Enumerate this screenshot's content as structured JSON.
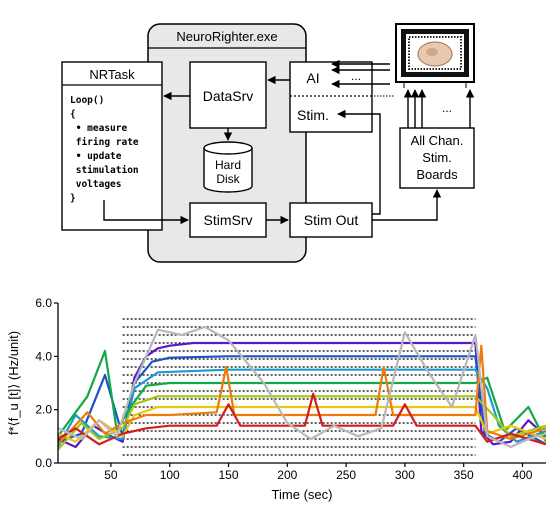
{
  "diagram": {
    "app_label": "NeuroRighter.exe",
    "nrtask": {
      "title": "NRTask",
      "code_lines": [
        "Loop()",
        "{",
        " • measure",
        " firing rate",
        " • update",
        " stimulation",
        " voltages",
        "}"
      ]
    },
    "datasrv": "DataSrv",
    "hard_disk": [
      "Hard",
      "Disk"
    ],
    "stimsrv": "StimSrv",
    "ai": "AI",
    "ellipsis": "...",
    "stim": "Stim.",
    "stim_out": "Stim Out",
    "boards": [
      "All Chan.",
      "Stim.",
      "Boards"
    ],
    "board_ellipsis": "..."
  },
  "chart_data": {
    "type": "line",
    "xlabel": "Time (sec)",
    "ylabel": "f*⟨f_u [t]⟩ (Hz/unit)",
    "xlim": [
      5,
      420
    ],
    "ylim": [
      0,
      6
    ],
    "xticks": [
      "50",
      "100",
      "150",
      "200",
      "250",
      "300",
      "350",
      "400"
    ],
    "yticks": [
      "0.0",
      "2.0",
      "4.0",
      "6.0"
    ],
    "target_levels": [
      0.3,
      0.6,
      0.9,
      1.2,
      1.5,
      1.8,
      2.1,
      2.4,
      2.7,
      3.0,
      3.3,
      3.6,
      3.9,
      4.2,
      4.5,
      4.8,
      5.1,
      5.4
    ],
    "target_window": [
      60,
      360
    ],
    "series": [
      {
        "color": "#5a18c8",
        "values": [
          [
            5,
            0.9
          ],
          [
            20,
            0.6
          ],
          [
            35,
            1.4
          ],
          [
            50,
            1.0
          ],
          [
            60,
            0.8
          ],
          [
            70,
            3.2
          ],
          [
            80,
            4.0
          ],
          [
            90,
            4.3
          ],
          [
            100,
            4.4
          ],
          [
            120,
            4.5
          ],
          [
            150,
            4.5
          ],
          [
            200,
            4.5
          ],
          [
            250,
            4.5
          ],
          [
            300,
            4.5
          ],
          [
            360,
            4.5
          ],
          [
            365,
            1.2
          ],
          [
            375,
            0.7
          ],
          [
            390,
            0.8
          ],
          [
            405,
            1.6
          ],
          [
            420,
            1.0
          ]
        ]
      },
      {
        "color": "#1e50c8",
        "values": [
          [
            5,
            0.8
          ],
          [
            25,
            1.1
          ],
          [
            45,
            3.3
          ],
          [
            60,
            1.0
          ],
          [
            70,
            3.0
          ],
          [
            85,
            3.8
          ],
          [
            100,
            3.95
          ],
          [
            150,
            4.0
          ],
          [
            200,
            4.0
          ],
          [
            250,
            4.0
          ],
          [
            300,
            4.0
          ],
          [
            360,
            4.0
          ],
          [
            368,
            1.1
          ],
          [
            380,
            0.8
          ],
          [
            395,
            1.3
          ],
          [
            420,
            0.7
          ]
        ]
      },
      {
        "color": "#1a9bd0",
        "values": [
          [
            5,
            0.6
          ],
          [
            20,
            1.8
          ],
          [
            40,
            1.0
          ],
          [
            60,
            0.9
          ],
          [
            70,
            2.8
          ],
          [
            90,
            3.4
          ],
          [
            150,
            3.5
          ],
          [
            200,
            3.5
          ],
          [
            250,
            3.5
          ],
          [
            300,
            3.5
          ],
          [
            360,
            3.5
          ],
          [
            370,
            2.8
          ],
          [
            380,
            1.4
          ],
          [
            395,
            0.8
          ],
          [
            420,
            1.2
          ]
        ]
      },
      {
        "color": "#10a848",
        "values": [
          [
            5,
            1.0
          ],
          [
            30,
            2.5
          ],
          [
            45,
            4.2
          ],
          [
            55,
            1.2
          ],
          [
            65,
            2.0
          ],
          [
            80,
            2.9
          ],
          [
            100,
            3.0
          ],
          [
            150,
            3.0
          ],
          [
            200,
            3.0
          ],
          [
            250,
            3.0
          ],
          [
            300,
            3.0
          ],
          [
            360,
            3.0
          ],
          [
            370,
            3.2
          ],
          [
            385,
            1.2
          ],
          [
            405,
            2.1
          ],
          [
            420,
            0.8
          ]
        ]
      },
      {
        "color": "#9fc814",
        "values": [
          [
            5,
            0.5
          ],
          [
            25,
            1.5
          ],
          [
            40,
            0.9
          ],
          [
            60,
            1.3
          ],
          [
            70,
            2.2
          ],
          [
            90,
            2.5
          ],
          [
            150,
            2.5
          ],
          [
            200,
            2.5
          ],
          [
            250,
            2.5
          ],
          [
            300,
            2.5
          ],
          [
            360,
            2.5
          ],
          [
            375,
            1.8
          ],
          [
            390,
            1.0
          ],
          [
            420,
            1.4
          ]
        ]
      },
      {
        "color": "#e8c810",
        "values": [
          [
            5,
            1.1
          ],
          [
            20,
            0.8
          ],
          [
            40,
            1.6
          ],
          [
            60,
            1.0
          ],
          [
            70,
            1.8
          ],
          [
            90,
            2.1
          ],
          [
            150,
            2.1
          ],
          [
            200,
            2.1
          ],
          [
            250,
            2.1
          ],
          [
            300,
            2.1
          ],
          [
            360,
            2.1
          ],
          [
            370,
            1.1
          ],
          [
            390,
            1.4
          ],
          [
            420,
            0.9
          ]
        ]
      },
      {
        "color": "#ee7a0a",
        "values": [
          [
            5,
            0.7
          ],
          [
            30,
            1.9
          ],
          [
            45,
            1.1
          ],
          [
            60,
            1.5
          ],
          [
            80,
            1.8
          ],
          [
            100,
            1.8
          ],
          [
            140,
            1.9
          ],
          [
            148,
            3.6
          ],
          [
            155,
            1.8
          ],
          [
            200,
            1.8
          ],
          [
            250,
            1.8
          ],
          [
            275,
            1.8
          ],
          [
            282,
            3.6
          ],
          [
            290,
            1.8
          ],
          [
            360,
            1.8
          ],
          [
            365,
            4.4
          ],
          [
            370,
            1.2
          ],
          [
            390,
            0.9
          ],
          [
            420,
            1.3
          ]
        ]
      },
      {
        "color": "#d21e1e",
        "values": [
          [
            5,
            0.9
          ],
          [
            20,
            1.3
          ],
          [
            40,
            0.7
          ],
          [
            60,
            1.1
          ],
          [
            80,
            1.3
          ],
          [
            100,
            1.4
          ],
          [
            140,
            1.4
          ],
          [
            150,
            2.2
          ],
          [
            160,
            1.4
          ],
          [
            200,
            1.4
          ],
          [
            215,
            1.4
          ],
          [
            222,
            2.6
          ],
          [
            230,
            1.4
          ],
          [
            290,
            1.4
          ],
          [
            300,
            2.2
          ],
          [
            310,
            1.4
          ],
          [
            360,
            1.4
          ],
          [
            370,
            0.8
          ],
          [
            390,
            1.1
          ],
          [
            420,
            0.7
          ]
        ]
      },
      {
        "color": "#b8b8b8",
        "values": [
          [
            5,
            1.3
          ],
          [
            25,
            0.9
          ],
          [
            40,
            1.6
          ],
          [
            55,
            1.0
          ],
          [
            70,
            3.0
          ],
          [
            90,
            5.0
          ],
          [
            110,
            4.8
          ],
          [
            130,
            5.1
          ],
          [
            150,
            4.6
          ],
          [
            180,
            3.0
          ],
          [
            200,
            1.5
          ],
          [
            220,
            0.9
          ],
          [
            240,
            1.4
          ],
          [
            260,
            1.0
          ],
          [
            280,
            1.3
          ],
          [
            300,
            4.9
          ],
          [
            320,
            3.4
          ],
          [
            340,
            2.1
          ],
          [
            360,
            4.8
          ],
          [
            370,
            1.0
          ],
          [
            390,
            0.6
          ],
          [
            405,
            0.9
          ],
          [
            420,
            1.1
          ]
        ]
      }
    ]
  }
}
